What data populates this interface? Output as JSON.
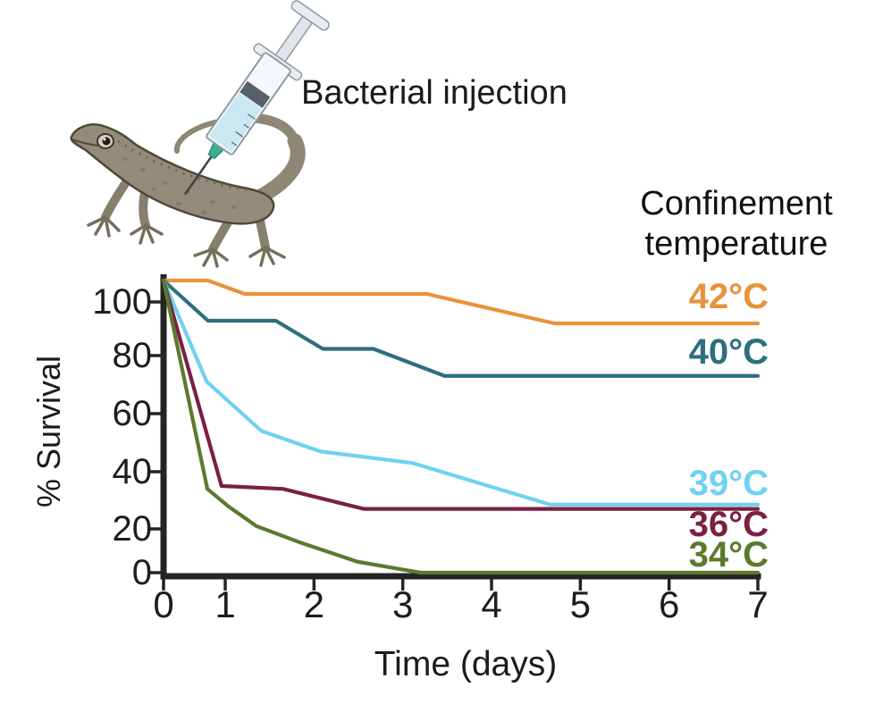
{
  "illustration": {
    "caption": "Bacterial injection",
    "subject": "lizard receiving syringe injection"
  },
  "legend": {
    "title_line1": "Confinement",
    "title_line2": "temperature"
  },
  "chart_data": {
    "type": "line",
    "title": "",
    "xlabel": "Time (days)",
    "ylabel": "% Survival",
    "xlim": [
      0,
      7
    ],
    "ylim": [
      0,
      110
    ],
    "x_ticks": [
      0,
      1,
      2,
      3,
      4,
      5,
      6,
      7
    ],
    "y_ticks": [
      0,
      20,
      40,
      60,
      80,
      100
    ],
    "grid": false,
    "legend_position": "right",
    "axis_color": "#242424",
    "series": [
      {
        "name": "42°C",
        "color": "#E8923C",
        "points": [
          [
            0,
            108
          ],
          [
            0.72,
            108
          ],
          [
            1.22,
            103
          ],
          [
            3.27,
            103
          ],
          [
            4.71,
            92
          ],
          [
            7,
            92
          ]
        ]
      },
      {
        "name": "40°C",
        "color": "#2E6F7E",
        "points": [
          [
            0,
            108
          ],
          [
            0.72,
            93
          ],
          [
            1.57,
            93
          ],
          [
            2.1,
            82.5
          ],
          [
            2.67,
            82.5
          ],
          [
            3.47,
            73
          ],
          [
            7,
            73
          ]
        ]
      },
      {
        "name": "39°C",
        "color": "#70D1F1",
        "points": [
          [
            0,
            108
          ],
          [
            0.7,
            71
          ],
          [
            1.41,
            54
          ],
          [
            2.07,
            47
          ],
          [
            3.11,
            43
          ],
          [
            4.66,
            28.5
          ],
          [
            7,
            28.5
          ]
        ]
      },
      {
        "name": "36°C",
        "color": "#7B1F43",
        "points": [
          [
            0,
            108
          ],
          [
            0.94,
            35
          ],
          [
            1.65,
            34
          ],
          [
            2.56,
            27
          ],
          [
            7,
            27
          ]
        ]
      },
      {
        "name": "34°C",
        "color": "#5C7A2D",
        "points": [
          [
            0,
            108
          ],
          [
            0.71,
            34
          ],
          [
            1.03,
            28
          ],
          [
            1.35,
            21
          ],
          [
            1.83,
            14
          ],
          [
            2.49,
            5
          ],
          [
            3.2,
            0
          ],
          [
            7,
            0
          ]
        ]
      }
    ]
  }
}
